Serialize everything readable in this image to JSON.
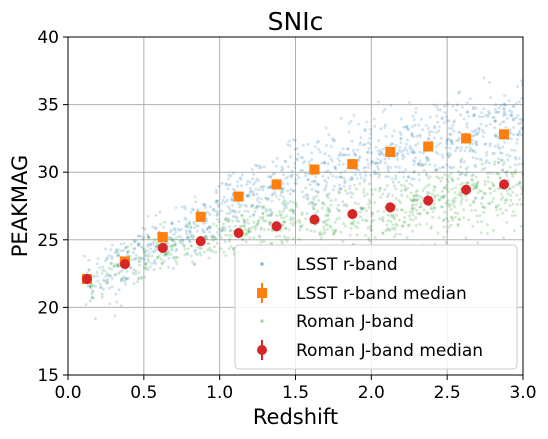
{
  "chart_data": {
    "type": "scatter",
    "title": "SNIc",
    "xlabel": "Redshift",
    "ylabel": "PEAKMAG",
    "xlim": [
      0.0,
      3.0
    ],
    "ylim": [
      15,
      40
    ],
    "xticks": [
      0.0,
      0.5,
      1.0,
      1.5,
      2.0,
      2.5,
      3.0
    ],
    "xtick_labels": [
      "0.0",
      "0.5",
      "1.0",
      "1.5",
      "2.0",
      "2.5",
      "3.0"
    ],
    "yticks": [
      15,
      20,
      25,
      30,
      35,
      40
    ],
    "ytick_labels": [
      "15",
      "20",
      "25",
      "30",
      "35",
      "40"
    ],
    "grid": true,
    "legend_position": "bottom-right",
    "colors": {
      "lsst_scatter": "#1f77b4",
      "lsst_median": "#ff7f0e",
      "roman_scatter": "#2ca02c",
      "roman_median": "#d62728"
    },
    "series": [
      {
        "name": "LSST r-band",
        "kind": "scatter",
        "description_trend": [
          [
            0.0,
            21.0
          ],
          [
            0.5,
            24.0
          ],
          [
            1.0,
            27.0
          ],
          [
            1.5,
            29.5
          ],
          [
            2.0,
            31.0
          ],
          [
            2.5,
            32.2
          ],
          [
            3.0,
            33.0
          ]
        ]
      },
      {
        "name": "LSST r-band median",
        "kind": "median",
        "x": [
          0.125,
          0.375,
          0.625,
          0.875,
          1.125,
          1.375,
          1.625,
          1.875,
          2.125,
          2.375,
          2.625,
          2.875
        ],
        "y": [
          22.1,
          23.4,
          25.2,
          26.7,
          28.2,
          29.1,
          30.2,
          30.6,
          31.5,
          31.9,
          32.5,
          32.8
        ]
      },
      {
        "name": "Roman J-band",
        "kind": "scatter",
        "description_trend": [
          [
            0.0,
            21.0
          ],
          [
            0.5,
            23.8
          ],
          [
            1.0,
            25.2
          ],
          [
            1.5,
            26.3
          ],
          [
            2.0,
            27.0
          ],
          [
            2.5,
            28.0
          ],
          [
            3.0,
            29.0
          ]
        ]
      },
      {
        "name": "Roman J-band median",
        "kind": "median",
        "x": [
          0.125,
          0.375,
          0.625,
          0.875,
          1.125,
          1.375,
          1.625,
          1.875,
          2.125,
          2.375,
          2.625,
          2.875
        ],
        "y": [
          22.1,
          23.2,
          24.4,
          24.9,
          25.5,
          26.0,
          26.5,
          26.9,
          27.4,
          27.9,
          28.7,
          29.1
        ]
      }
    ]
  }
}
